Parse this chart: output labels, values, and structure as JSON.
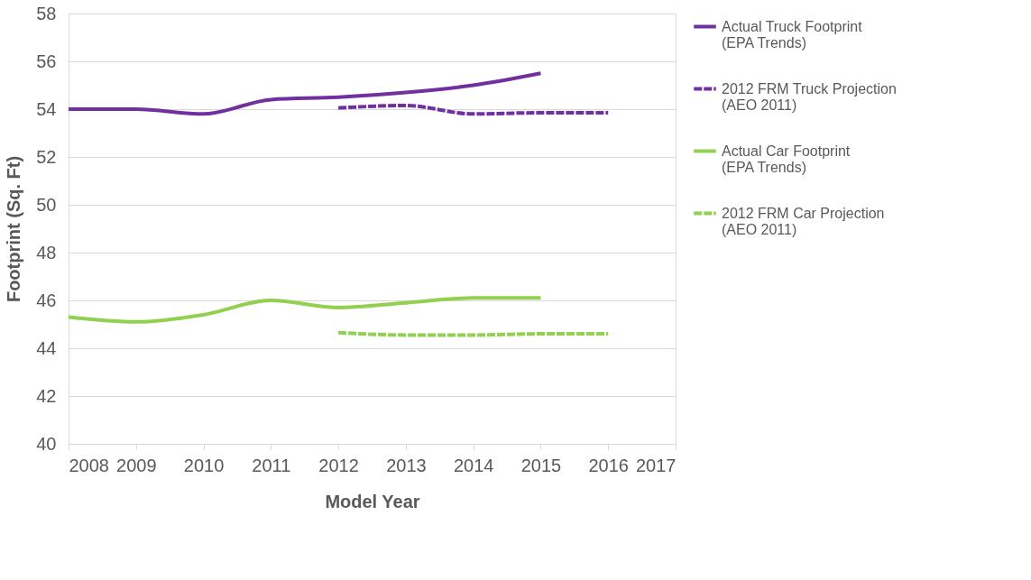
{
  "chart_data": {
    "type": "line",
    "xlabel": "Model Year",
    "ylabel": "Footprint (Sq. Ft)",
    "xlim": [
      2008,
      2017
    ],
    "xticks": [
      2008,
      2009,
      2010,
      2011,
      2012,
      2013,
      2014,
      2015,
      2016,
      2017
    ],
    "ylim": [
      40,
      58
    ],
    "yticks": [
      40,
      42,
      44,
      46,
      48,
      50,
      52,
      54,
      56,
      58
    ],
    "grid": "y",
    "legend": "right",
    "series": [
      {
        "name": "Actual Truck Footprint\n(EPA Trends)",
        "color": "#7030a0",
        "line_style": "solid",
        "x": [
          2008,
          2009,
          2010,
          2011,
          2012,
          2013,
          2014,
          2015
        ],
        "values": [
          54.0,
          54.0,
          53.8,
          54.4,
          54.5,
          54.7,
          55.0,
          55.5
        ]
      },
      {
        "name": "2012 FRM Truck Projection\n(AEO 2011)",
        "color": "#7030a0",
        "line_style": "dashed",
        "x": [
          2012,
          2013,
          2014,
          2015,
          2016
        ],
        "values": [
          54.05,
          54.15,
          53.8,
          53.85,
          53.85
        ]
      },
      {
        "name": "Actual Car Footprint\n(EPA Trends)",
        "color": "#92d050",
        "line_style": "solid",
        "x": [
          2008,
          2009,
          2010,
          2011,
          2012,
          2013,
          2014,
          2015
        ],
        "values": [
          45.3,
          45.1,
          45.4,
          46.0,
          45.7,
          45.9,
          46.1,
          46.1
        ]
      },
      {
        "name": "2012 FRM Car Projection\n(AEO 2011)",
        "color": "#92d050",
        "line_style": "dashed",
        "x": [
          2012,
          2013,
          2014,
          2015,
          2016
        ],
        "values": [
          44.65,
          44.55,
          44.55,
          44.6,
          44.6
        ]
      }
    ]
  }
}
